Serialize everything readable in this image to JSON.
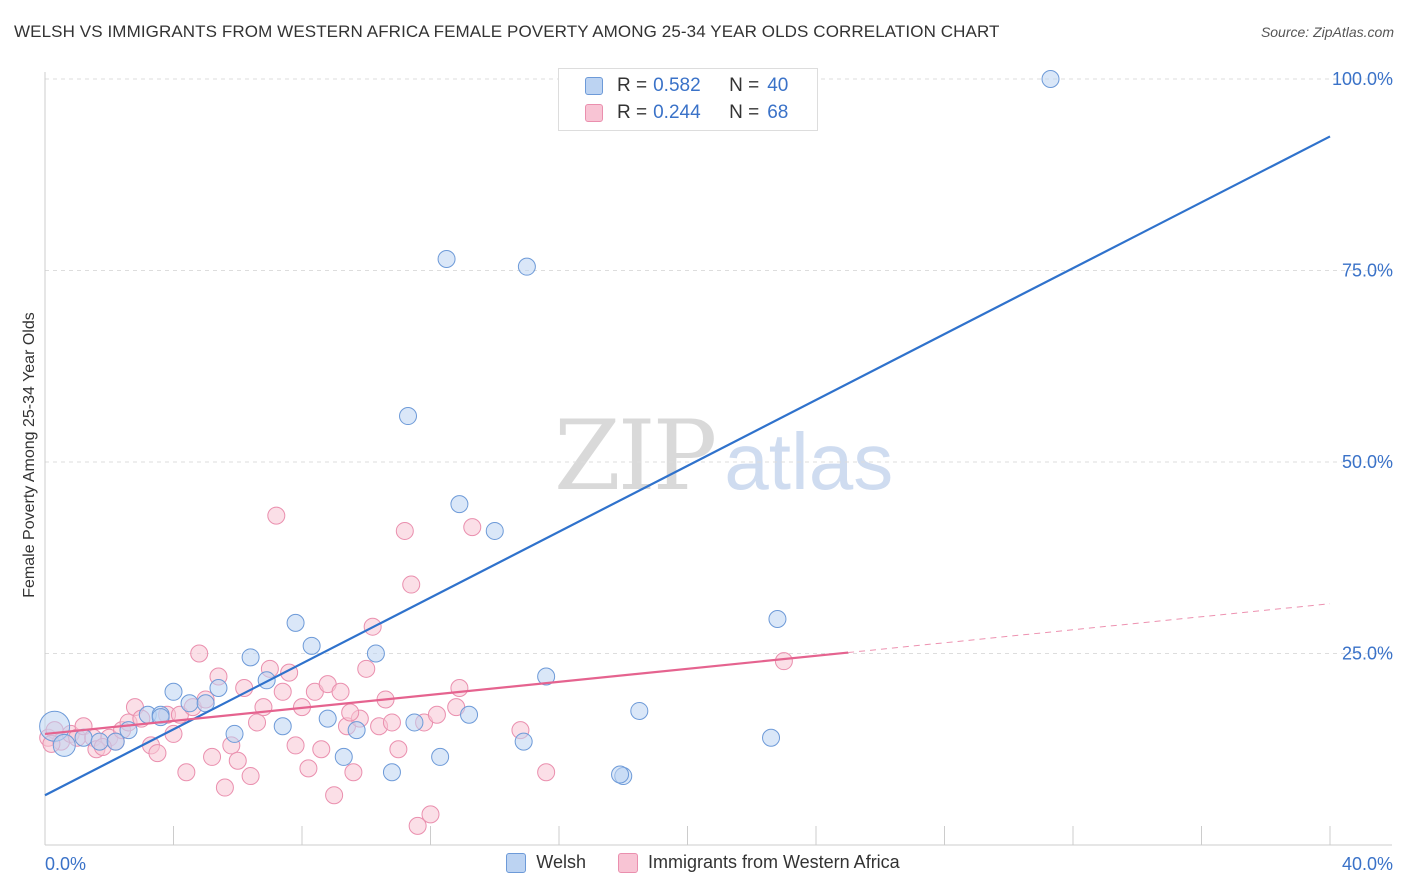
{
  "title": "WELSH VS IMMIGRANTS FROM WESTERN AFRICA FEMALE POVERTY AMONG 25-34 YEAR OLDS CORRELATION CHART",
  "source": "Source: ZipAtlas.com",
  "watermark": {
    "zip": "ZIP",
    "atlas": "atlas"
  },
  "legend": {
    "series1": {
      "r_label": "R = ",
      "r_value": "0.582",
      "n_label": "N = ",
      "n_value": "40"
    },
    "series2": {
      "r_label": "R = ",
      "r_value": "0.244",
      "n_label": "N = ",
      "n_value": "68"
    }
  },
  "bottom_legend": {
    "series1": "Welsh",
    "series2": "Immigrants from Western Africa"
  },
  "colors": {
    "welsh_fill": "#bcd3f2",
    "welsh_stroke": "#6d9ad8",
    "welsh_line": "#2f72cc",
    "imm_fill": "#f8c4d4",
    "imm_stroke": "#ea8fae",
    "imm_line": "#e5638f",
    "axis_text": "#3a72c8",
    "grid": "#dddddd"
  },
  "chart_data": {
    "type": "scatter",
    "title": "WELSH VS IMMIGRANTS FROM WESTERN AFRICA FEMALE POVERTY AMONG 25-34 YEAR OLDS CORRELATION CHART",
    "xlabel": "",
    "ylabel": "Female Poverty Among 25-34 Year Olds",
    "xlim": [
      0,
      40
    ],
    "ylim": [
      0,
      102
    ],
    "x_tick_labels": [
      {
        "value": 0,
        "label": "0.0%"
      },
      {
        "value": 40,
        "label": "40.0%"
      }
    ],
    "y_tick_labels": [
      {
        "value": 25,
        "label": "25.0%"
      },
      {
        "value": 50,
        "label": "50.0%"
      },
      {
        "value": 75,
        "label": "75.0%"
      },
      {
        "value": 100,
        "label": "100.0%"
      }
    ],
    "series": [
      {
        "name": "Welsh",
        "R": 0.582,
        "N": 40,
        "trend": {
          "x0": 0,
          "y0": 6.5,
          "x1": 40,
          "y1": 92.5,
          "dashed_from": null
        },
        "points": [
          [
            0.3,
            15.5
          ],
          [
            0.6,
            13
          ],
          [
            1.2,
            14
          ],
          [
            1.7,
            13.5
          ],
          [
            2.2,
            13.5
          ],
          [
            2.6,
            15
          ],
          [
            3.2,
            17
          ],
          [
            3.6,
            17
          ],
          [
            4.0,
            20
          ],
          [
            4.5,
            18.5
          ],
          [
            5.0,
            18.5
          ],
          [
            5.4,
            20.5
          ],
          [
            5.9,
            14.5
          ],
          [
            6.4,
            24.5
          ],
          [
            6.9,
            21.5
          ],
          [
            7.4,
            15.5
          ],
          [
            7.8,
            29
          ],
          [
            8.3,
            26
          ],
          [
            8.8,
            16.5
          ],
          [
            9.3,
            11.5
          ],
          [
            9.7,
            15
          ],
          [
            10.3,
            25
          ],
          [
            10.8,
            9.5
          ],
          [
            11.3,
            56
          ],
          [
            11.5,
            16
          ],
          [
            12.3,
            11.5
          ],
          [
            12.5,
            76.5
          ],
          [
            12.9,
            44.5
          ],
          [
            13.2,
            17
          ],
          [
            14.0,
            41
          ],
          [
            14.9,
            13.5
          ],
          [
            15.0,
            75.5
          ],
          [
            15.6,
            22
          ],
          [
            18.0,
            9
          ],
          [
            18.5,
            17.5
          ],
          [
            22.6,
            14
          ],
          [
            22.8,
            29.5
          ],
          [
            31.3,
            100
          ],
          [
            17.9,
            9.2
          ],
          [
            3.6,
            16.7
          ]
        ]
      },
      {
        "name": "Immigrants from Western Africa",
        "R": 0.244,
        "N": 68,
        "trend": {
          "x0": 0,
          "y0": 14.5,
          "x1": 40,
          "y1": 31.5,
          "solid_until": 25
        },
        "points": [
          [
            0.1,
            14
          ],
          [
            0.3,
            15
          ],
          [
            0.5,
            13.5
          ],
          [
            0.8,
            14.5
          ],
          [
            1.0,
            14
          ],
          [
            1.2,
            15.5
          ],
          [
            1.5,
            14
          ],
          [
            1.6,
            12.5
          ],
          [
            2.0,
            14
          ],
          [
            2.2,
            13.5
          ],
          [
            2.4,
            15
          ],
          [
            2.6,
            16
          ],
          [
            2.8,
            18
          ],
          [
            3.0,
            16.5
          ],
          [
            3.3,
            13
          ],
          [
            3.5,
            12
          ],
          [
            3.8,
            17
          ],
          [
            4.0,
            14.5
          ],
          [
            4.2,
            17
          ],
          [
            4.4,
            9.5
          ],
          [
            4.6,
            18
          ],
          [
            4.8,
            25
          ],
          [
            5.0,
            19
          ],
          [
            5.2,
            11.5
          ],
          [
            5.4,
            22
          ],
          [
            5.6,
            7.5
          ],
          [
            5.8,
            13
          ],
          [
            6.0,
            11
          ],
          [
            6.2,
            20.5
          ],
          [
            6.4,
            9
          ],
          [
            6.6,
            16
          ],
          [
            6.8,
            18
          ],
          [
            7.0,
            23
          ],
          [
            7.2,
            43
          ],
          [
            7.4,
            20
          ],
          [
            7.6,
            22.5
          ],
          [
            7.8,
            13
          ],
          [
            8.0,
            18
          ],
          [
            8.2,
            10
          ],
          [
            8.4,
            20
          ],
          [
            8.6,
            12.5
          ],
          [
            8.8,
            21
          ],
          [
            9.0,
            6.5
          ],
          [
            9.2,
            20
          ],
          [
            9.4,
            15.5
          ],
          [
            9.6,
            9.5
          ],
          [
            9.8,
            16.5
          ],
          [
            10.0,
            23
          ],
          [
            10.2,
            28.5
          ],
          [
            10.4,
            15.5
          ],
          [
            10.6,
            19
          ],
          [
            10.8,
            16
          ],
          [
            11.0,
            12.5
          ],
          [
            11.2,
            41
          ],
          [
            11.4,
            34
          ],
          [
            11.6,
            2.5
          ],
          [
            11.8,
            16
          ],
          [
            12.0,
            4
          ],
          [
            12.2,
            17
          ],
          [
            12.8,
            18
          ],
          [
            12.9,
            20.5
          ],
          [
            13.3,
            41.5
          ],
          [
            14.8,
            15
          ],
          [
            15.6,
            9.5
          ],
          [
            23.0,
            24
          ],
          [
            0.2,
            13.2
          ],
          [
            1.8,
            12.8
          ],
          [
            9.5,
            17.3
          ]
        ]
      }
    ]
  }
}
